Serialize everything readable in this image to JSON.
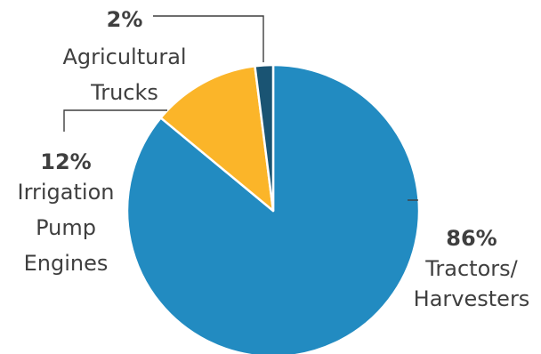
{
  "chart_data": {
    "type": "pie",
    "slices": [
      {
        "percent_label": "86%",
        "label_lines": [
          "Tractors/",
          "Harvesters"
        ],
        "value": 86,
        "color": "#228bc1"
      },
      {
        "percent_label": "12%",
        "label_lines": [
          "Irrigation",
          "Pump",
          "Engines"
        ],
        "value": 12,
        "color": "#fbb529"
      },
      {
        "percent_label": "2%",
        "label_lines": [
          "Agricultural",
          "Trucks"
        ],
        "value": 2,
        "color": "#1a5473"
      }
    ]
  }
}
